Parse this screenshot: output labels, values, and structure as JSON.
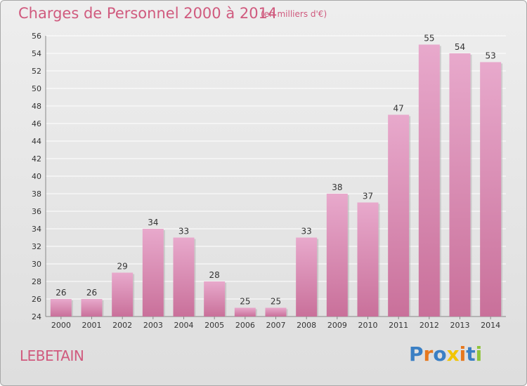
{
  "chart_data": {
    "type": "bar",
    "title": "Charges de Personnel 2000 à 2014",
    "subtitle": "(en milliers d'€)",
    "categories": [
      "2000",
      "2001",
      "2002",
      "2003",
      "2004",
      "2005",
      "2006",
      "2007",
      "2008",
      "2009",
      "2010",
      "2011",
      "2012",
      "2013",
      "2014"
    ],
    "values": [
      26,
      26,
      29,
      34,
      33,
      28,
      25,
      25,
      33,
      38,
      37,
      47,
      55,
      54,
      53
    ],
    "ylim": [
      24,
      56
    ],
    "yticks": [
      24,
      26,
      28,
      30,
      32,
      34,
      36,
      38,
      40,
      42,
      44,
      46,
      48,
      50,
      52,
      54,
      56
    ],
    "grid": true,
    "bar_color": "#c9709a",
    "bar_color_light": "#e8a9cc"
  },
  "location": "LEBETAIN",
  "logo": {
    "text": "Proxiti",
    "letters": [
      "P",
      "r",
      "o",
      "x",
      "i",
      "t",
      "i"
    ],
    "colors": [
      "#3a7fc4",
      "#e7781e",
      "#3a7fc4",
      "#f2c500",
      "#e7781e",
      "#3a7fc4",
      "#8fc43a"
    ]
  },
  "colors": {
    "accent": "#d05a7e",
    "grid": "#ffffff",
    "axis": "#888888"
  }
}
